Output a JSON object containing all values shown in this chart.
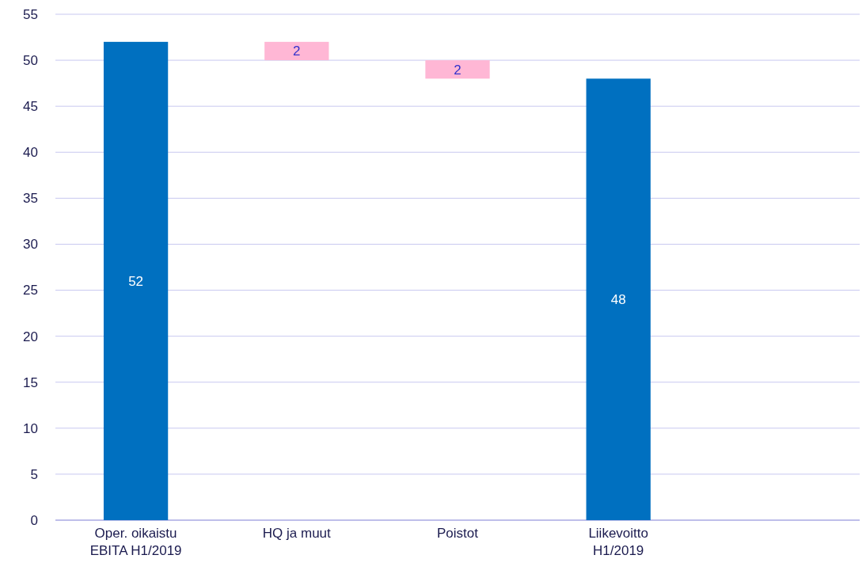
{
  "chart_data": {
    "type": "bar",
    "categories": [
      "Oper. oikaistu EBITA H1/2019",
      "HQ ja muut",
      "Poistot",
      "Liikevoitto H1/2019",
      null
    ],
    "values": [
      52,
      2,
      2,
      48,
      null
    ],
    "base": [
      0,
      50,
      48,
      0,
      null
    ],
    "colors": [
      "#0070c0",
      "#ffb7d5",
      "#ffb7d5",
      "#0070c0",
      null
    ],
    "ylim": [
      0,
      55
    ],
    "yticks": [
      0,
      5,
      10,
      15,
      20,
      25,
      30,
      35,
      40,
      45,
      50,
      55
    ],
    "grid": "y",
    "data_labels": true
  }
}
